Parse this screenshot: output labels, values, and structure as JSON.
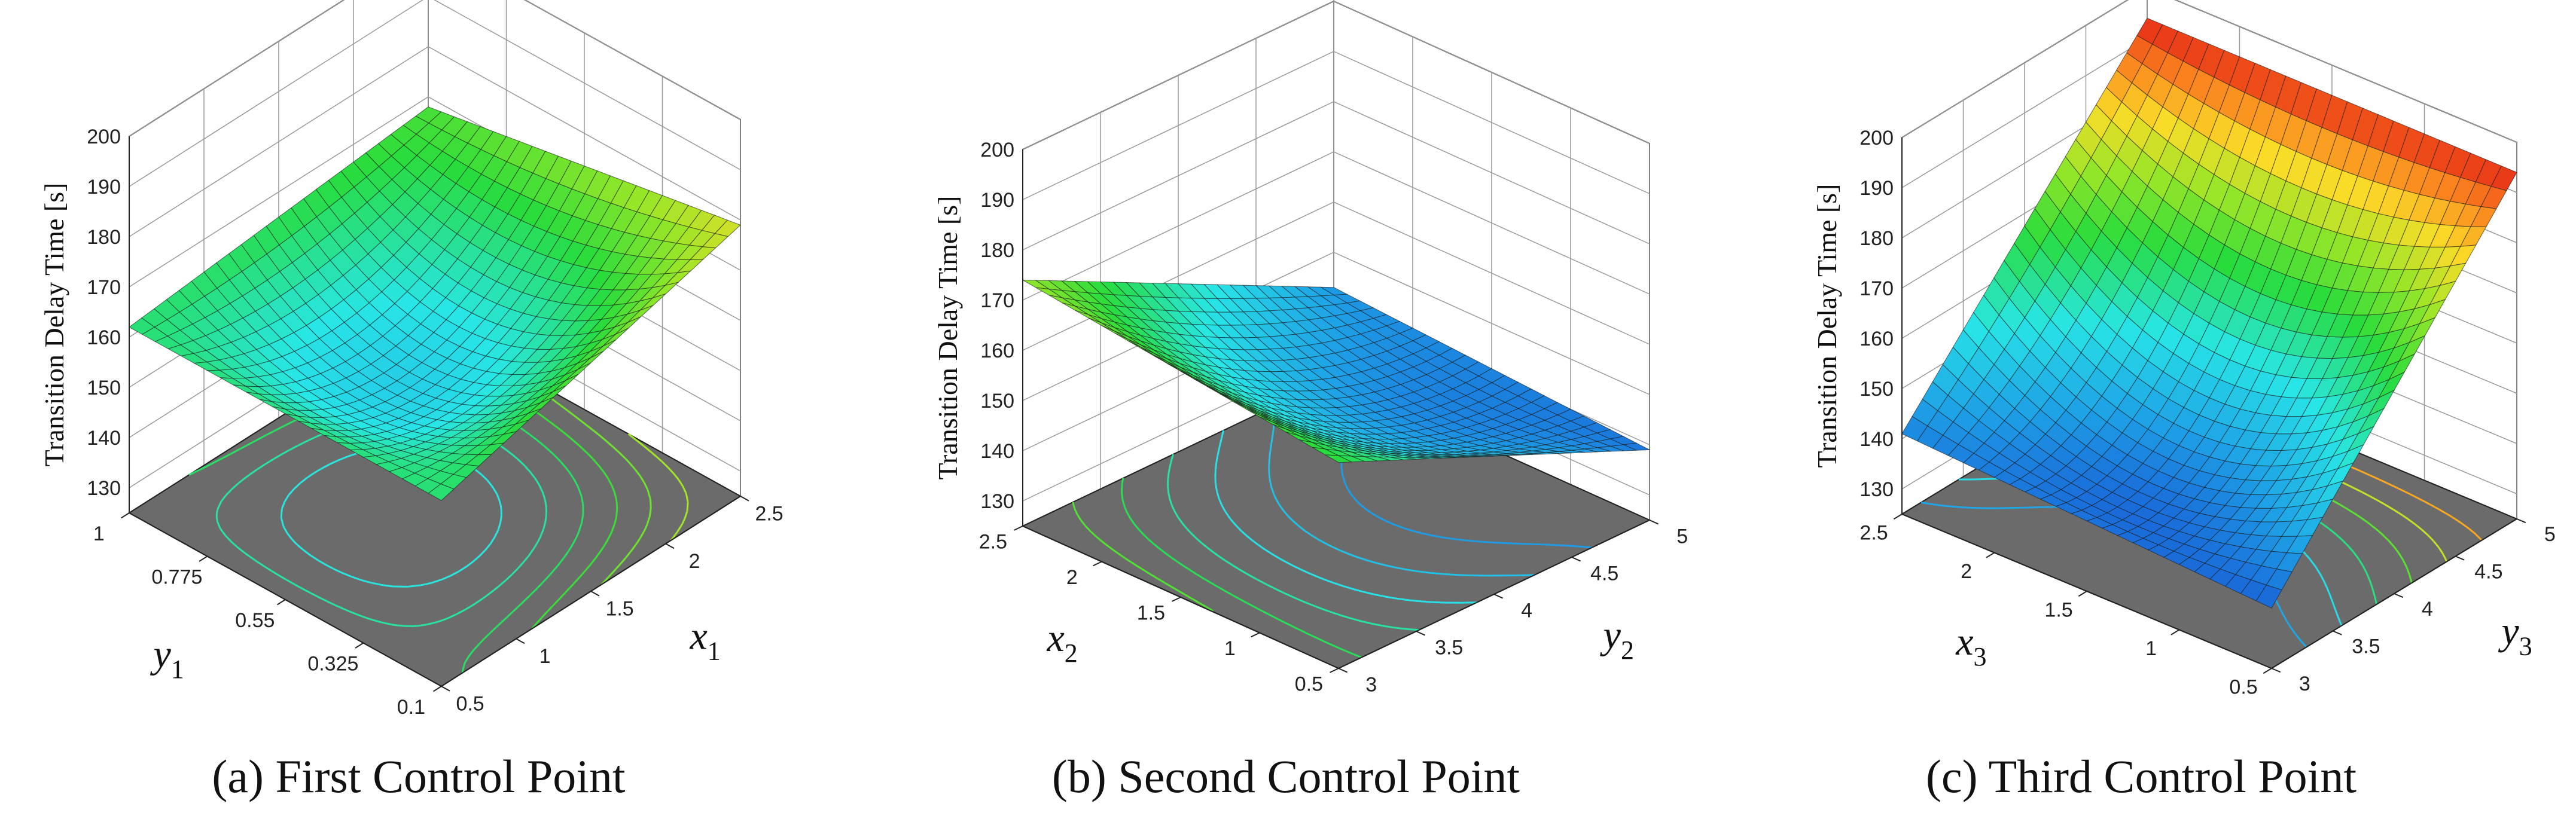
{
  "chart_data": [
    {
      "type": "surface",
      "caption": "(a) First Control Point",
      "zlabel": "Transition Delay Time [s]",
      "xlabel": "x",
      "xlabel_sub": "1",
      "ylabel": "y",
      "ylabel_sub": "1",
      "x_ticks": [
        "0.5",
        "1",
        "1.5",
        "2",
        "2.5"
      ],
      "y_ticks": [
        "0.1",
        "0.325",
        "0.55",
        "0.775",
        "1"
      ],
      "z_ticks": [
        "130",
        "140",
        "150",
        "160",
        "170",
        "180",
        "190",
        "200"
      ],
      "xlim": [
        0.5,
        2.5
      ],
      "ylim": [
        0.1,
        1
      ],
      "zlim": [
        125,
        200
      ],
      "surface_corners": {
        "x_min_y_min": 162,
        "x_min_y_max": 162,
        "x_max_y_min": 179,
        "x_max_y_max": 168,
        "minimum": 139
      },
      "contour_floor": "#6b6b6b"
    },
    {
      "type": "surface",
      "caption": "(b) Second Control Point",
      "zlabel": "Transition Delay Time [s]",
      "xlabel": "x",
      "xlabel_sub": "2",
      "ylabel": "y",
      "ylabel_sub": "2",
      "x_ticks": [
        "0.5",
        "1",
        "1.5",
        "2",
        "2.5"
      ],
      "y_ticks": [
        "3",
        "3.5",
        "4",
        "4.5",
        "5"
      ],
      "z_ticks": [
        "130",
        "140",
        "150",
        "160",
        "170",
        "180",
        "190",
        "200"
      ],
      "xlim": [
        0.5,
        2.5
      ],
      "ylim": [
        3,
        5
      ],
      "zlim": [
        125,
        200
      ],
      "surface_corners": {
        "x_min_y_min": 166,
        "x_min_y_max": 139,
        "x_max_y_min": 174,
        "x_max_y_max": 143,
        "minimum": 139
      },
      "contour_floor": "#6b6b6b"
    },
    {
      "type": "surface",
      "caption": "(c) Third Control Point",
      "zlabel": "Transition Delay Time [s]",
      "xlabel": "x",
      "xlabel_sub": "3",
      "ylabel": "y",
      "ylabel_sub": "3",
      "x_ticks": [
        "0.5",
        "1",
        "1.5",
        "2",
        "2.5"
      ],
      "y_ticks": [
        "3",
        "3.5",
        "4",
        "4.5",
        "5"
      ],
      "z_ticks": [
        "130",
        "140",
        "150",
        "160",
        "170",
        "180",
        "190",
        "200"
      ],
      "xlim": [
        0.5,
        2.5
      ],
      "ylim": [
        3,
        5
      ],
      "zlim": [
        125,
        200
      ],
      "surface_corners": {
        "x_min_y_min": 137,
        "x_min_y_max": 194,
        "x_max_y_min": 141,
        "x_max_y_max": 194,
        "minimum": 134
      },
      "contour_floor": "#6b6b6b"
    }
  ]
}
